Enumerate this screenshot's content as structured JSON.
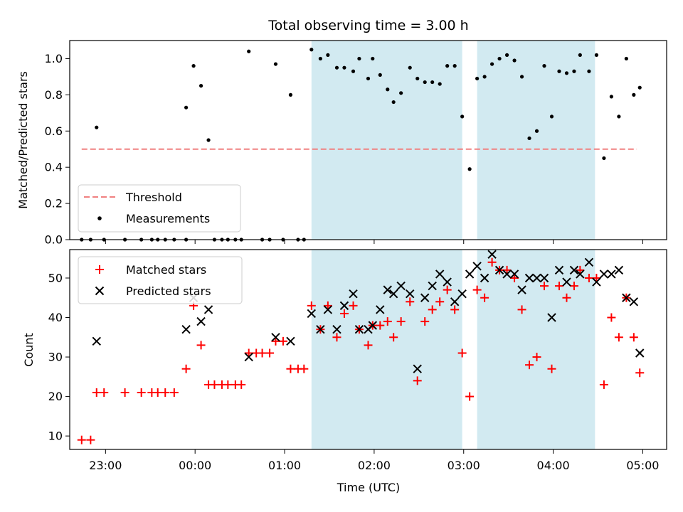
{
  "chart_data": {
    "title": "Total observing time = 3.00 h",
    "colors": {
      "threshold": "#f08080",
      "measurements": "#000000",
      "matched": "#ff0000",
      "predicted": "#000000",
      "highlight": "#add8e6"
    },
    "xaxis": {
      "label": "Time (UTC)",
      "xlim": [
        "22:36",
        "05:16"
      ],
      "ticks": [
        "23:00",
        "00:00",
        "01:00",
        "02:00",
        "03:00",
        "04:00",
        "05:00"
      ]
    },
    "highlight_spans": [
      {
        "start": "01:18",
        "end": "02:59"
      },
      {
        "start": "03:09",
        "end": "04:28"
      }
    ],
    "panels": [
      {
        "type": "scatter",
        "ylabel": "Matched/Predicted stars",
        "ylim": [
          0,
          1.1
        ],
        "yticks": [
          "0.0",
          "0.2",
          "0.4",
          "0.6",
          "0.8",
          "1.0"
        ],
        "legend_position": "lower-left",
        "threshold": {
          "name": "Threshold",
          "value": 0.5,
          "x_start": "22:44",
          "x_end": "04:56"
        },
        "series": [
          {
            "name": "Measurements",
            "points": [
              [
                "22:44",
                0
              ],
              [
                "22:50",
                0
              ],
              [
                "22:54",
                0.62
              ],
              [
                "22:59",
                0
              ],
              [
                "23:13",
                0
              ],
              [
                "23:24",
                0
              ],
              [
                "23:31",
                0
              ],
              [
                "23:35",
                0
              ],
              [
                "23:40",
                0
              ],
              [
                "23:46",
                0
              ],
              [
                "23:54",
                0
              ],
              [
                "23:54",
                0.73
              ],
              [
                "23:59",
                0.96
              ],
              [
                "00:04",
                0.85
              ],
              [
                "00:09",
                0.55
              ],
              [
                "00:13",
                0
              ],
              [
                "00:18",
                0
              ],
              [
                "00:22",
                0
              ],
              [
                "00:27",
                0
              ],
              [
                "00:31",
                0
              ],
              [
                "00:36",
                1.04
              ],
              [
                "00:45",
                0
              ],
              [
                "00:50",
                0
              ],
              [
                "00:54",
                0.97
              ],
              [
                "00:59",
                0
              ],
              [
                "01:04",
                0.8
              ],
              [
                "01:09",
                0
              ],
              [
                "01:13",
                0
              ],
              [
                "01:18",
                1.05
              ],
              [
                "01:24",
                1.0
              ],
              [
                "01:29",
                1.02
              ],
              [
                "01:35",
                0.95
              ],
              [
                "01:40",
                0.95
              ],
              [
                "01:46",
                0.93
              ],
              [
                "01:50",
                1.0
              ],
              [
                "01:56",
                0.89
              ],
              [
                "01:59",
                1.0
              ],
              [
                "02:04",
                0.91
              ],
              [
                "02:09",
                0.83
              ],
              [
                "02:13",
                0.76
              ],
              [
                "02:18",
                0.81
              ],
              [
                "02:24",
                0.95
              ],
              [
                "02:29",
                0.89
              ],
              [
                "02:34",
                0.87
              ],
              [
                "02:39",
                0.87
              ],
              [
                "02:44",
                0.86
              ],
              [
                "02:49",
                0.96
              ],
              [
                "02:54",
                0.96
              ],
              [
                "02:59",
                0.68
              ],
              [
                "03:04",
                0.39
              ],
              [
                "03:09",
                0.89
              ],
              [
                "03:14",
                0.9
              ],
              [
                "03:19",
                0.97
              ],
              [
                "03:24",
                1.0
              ],
              [
                "03:29",
                1.02
              ],
              [
                "03:34",
                0.99
              ],
              [
                "03:39",
                0.9
              ],
              [
                "03:44",
                0.56
              ],
              [
                "03:49",
                0.6
              ],
              [
                "03:54",
                0.96
              ],
              [
                "03:59",
                0.68
              ],
              [
                "04:04",
                0.93
              ],
              [
                "04:09",
                0.92
              ],
              [
                "04:14",
                0.93
              ],
              [
                "04:18",
                1.02
              ],
              [
                "04:24",
                0.93
              ],
              [
                "04:29",
                1.02
              ],
              [
                "04:34",
                0.45
              ],
              [
                "04:39",
                0.79
              ],
              [
                "04:44",
                0.68
              ],
              [
                "04:49",
                1.0
              ],
              [
                "04:54",
                0.8
              ],
              [
                "04:58",
                0.84
              ]
            ]
          }
        ]
      },
      {
        "type": "scatter",
        "ylabel": "Count",
        "ylim": [
          6.6,
          57.2
        ],
        "yticks": [
          "10",
          "20",
          "30",
          "40",
          "50"
        ],
        "legend_position": "upper-left",
        "series": [
          {
            "name": "Matched stars",
            "marker": "plus",
            "points": [
              [
                "22:44",
                9
              ],
              [
                "22:50",
                9
              ],
              [
                "22:54",
                21
              ],
              [
                "22:59",
                21
              ],
              [
                "23:13",
                21
              ],
              [
                "23:24",
                21
              ],
              [
                "23:31",
                21
              ],
              [
                "23:35",
                21
              ],
              [
                "23:40",
                21
              ],
              [
                "23:46",
                21
              ],
              [
                "23:54",
                27
              ],
              [
                "23:59",
                43
              ],
              [
                "00:04",
                33
              ],
              [
                "00:09",
                23
              ],
              [
                "00:13",
                23
              ],
              [
                "00:18",
                23
              ],
              [
                "00:22",
                23
              ],
              [
                "00:27",
                23
              ],
              [
                "00:31",
                23
              ],
              [
                "00:36",
                31
              ],
              [
                "00:41",
                31
              ],
              [
                "00:45",
                31
              ],
              [
                "00:50",
                31
              ],
              [
                "00:54",
                34
              ],
              [
                "00:59",
                34
              ],
              [
                "01:04",
                27
              ],
              [
                "01:09",
                27
              ],
              [
                "01:13",
                27
              ],
              [
                "01:18",
                43
              ],
              [
                "01:24",
                37
              ],
              [
                "01:29",
                43
              ],
              [
                "01:35",
                35
              ],
              [
                "01:40",
                41
              ],
              [
                "01:46",
                43
              ],
              [
                "01:50",
                37
              ],
              [
                "01:56",
                33
              ],
              [
                "01:59",
                38
              ],
              [
                "02:04",
                38
              ],
              [
                "02:09",
                39
              ],
              [
                "02:13",
                35
              ],
              [
                "02:18",
                39
              ],
              [
                "02:24",
                44
              ],
              [
                "02:29",
                24
              ],
              [
                "02:34",
                39
              ],
              [
                "02:39",
                42
              ],
              [
                "02:44",
                44
              ],
              [
                "02:49",
                47
              ],
              [
                "02:54",
                42
              ],
              [
                "02:59",
                31
              ],
              [
                "03:04",
                20
              ],
              [
                "03:09",
                47
              ],
              [
                "03:14",
                45
              ],
              [
                "03:19",
                54
              ],
              [
                "03:24",
                52
              ],
              [
                "03:29",
                52
              ],
              [
                "03:34",
                50
              ],
              [
                "03:39",
                42
              ],
              [
                "03:44",
                28
              ],
              [
                "03:49",
                30
              ],
              [
                "03:54",
                48
              ],
              [
                "03:59",
                27
              ],
              [
                "04:04",
                48
              ],
              [
                "04:09",
                45
              ],
              [
                "04:14",
                48
              ],
              [
                "04:18",
                52
              ],
              [
                "04:24",
                50
              ],
              [
                "04:29",
                50
              ],
              [
                "04:34",
                23
              ],
              [
                "04:39",
                40
              ],
              [
                "04:44",
                35
              ],
              [
                "04:49",
                45
              ],
              [
                "04:54",
                35
              ],
              [
                "04:58",
                26
              ]
            ]
          },
          {
            "name": "Predicted stars",
            "marker": "x",
            "points": [
              [
                "22:54",
                34
              ],
              [
                "23:54",
                37
              ],
              [
                "23:59",
                45
              ],
              [
                "00:04",
                39
              ],
              [
                "00:09",
                42
              ],
              [
                "00:36",
                30
              ],
              [
                "00:54",
                35
              ],
              [
                "01:04",
                34
              ],
              [
                "01:18",
                41
              ],
              [
                "01:24",
                37
              ],
              [
                "01:29",
                42
              ],
              [
                "01:35",
                37
              ],
              [
                "01:40",
                43
              ],
              [
                "01:46",
                46
              ],
              [
                "01:50",
                37
              ],
              [
                "01:56",
                37
              ],
              [
                "01:59",
                38
              ],
              [
                "02:04",
                42
              ],
              [
                "02:09",
                47
              ],
              [
                "02:13",
                46
              ],
              [
                "02:18",
                48
              ],
              [
                "02:24",
                46
              ],
              [
                "02:29",
                27
              ],
              [
                "02:34",
                45
              ],
              [
                "02:39",
                48
              ],
              [
                "02:44",
                51
              ],
              [
                "02:49",
                49
              ],
              [
                "02:54",
                44
              ],
              [
                "02:59",
                46
              ],
              [
                "03:04",
                51
              ],
              [
                "03:09",
                53
              ],
              [
                "03:14",
                50
              ],
              [
                "03:19",
                56
              ],
              [
                "03:24",
                52
              ],
              [
                "03:29",
                51
              ],
              [
                "03:34",
                51
              ],
              [
                "03:39",
                47
              ],
              [
                "03:44",
                50
              ],
              [
                "03:49",
                50
              ],
              [
                "03:54",
                50
              ],
              [
                "03:59",
                40
              ],
              [
                "04:04",
                52
              ],
              [
                "04:09",
                49
              ],
              [
                "04:14",
                52
              ],
              [
                "04:18",
                51
              ],
              [
                "04:24",
                54
              ],
              [
                "04:29",
                49
              ],
              [
                "04:34",
                51
              ],
              [
                "04:39",
                51
              ],
              [
                "04:44",
                52
              ],
              [
                "04:49",
                45
              ],
              [
                "04:54",
                44
              ],
              [
                "04:58",
                31
              ]
            ]
          }
        ]
      }
    ]
  }
}
